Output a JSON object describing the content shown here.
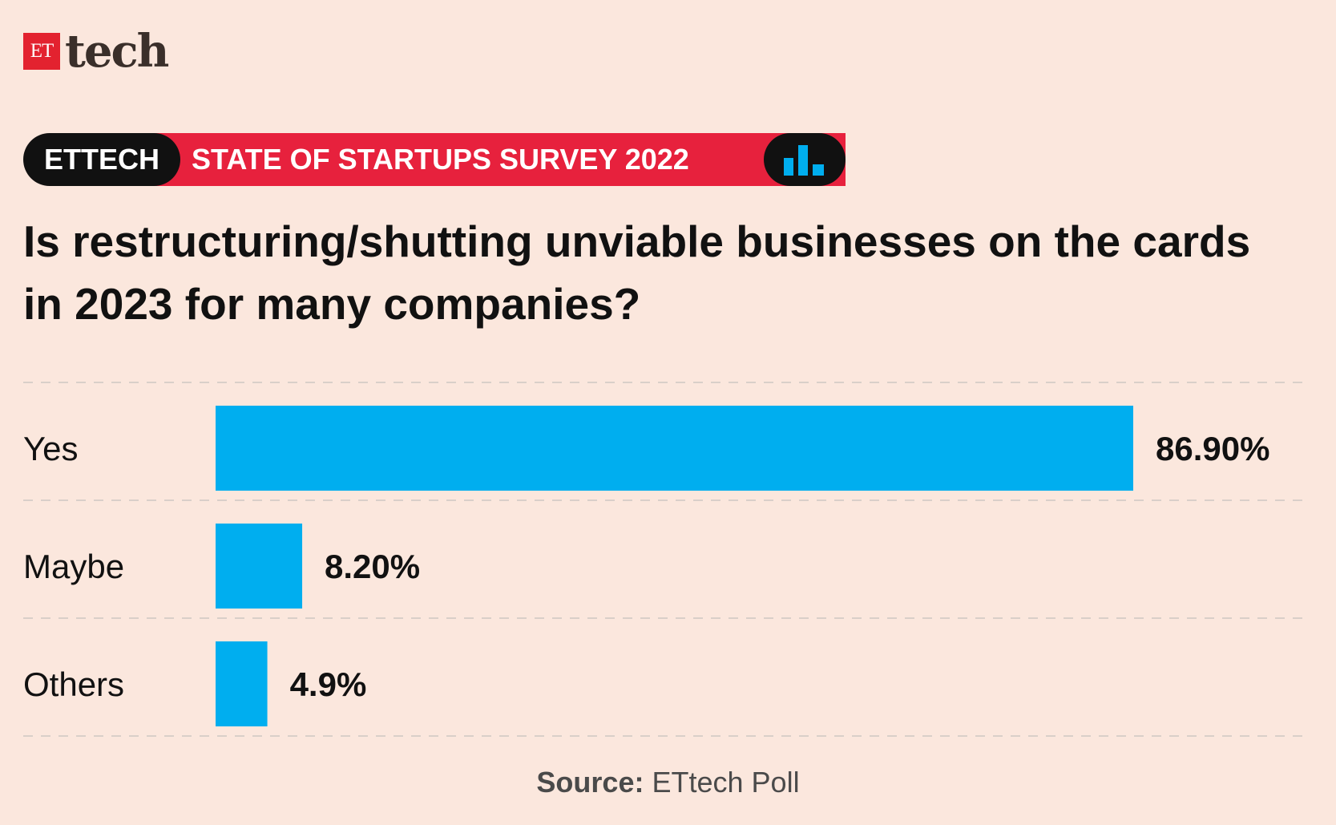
{
  "logo": {
    "et": "ET",
    "tech": "tech"
  },
  "banner": {
    "left": "ETTECH",
    "right": "STATE OF STARTUPS SURVEY 2022",
    "icon": "bar-chart-icon"
  },
  "colors": {
    "background": "#fbe7dd",
    "bar": "#00aeef",
    "red": "#e7213d",
    "black": "#111111"
  },
  "chart_data": {
    "type": "bar",
    "orientation": "horizontal",
    "title": "Is restructuring/shutting unviable businesses on the cards in 2023 for many companies?",
    "categories": [
      "Yes",
      "Maybe",
      "Others"
    ],
    "values": [
      86.9,
      8.2,
      4.9
    ],
    "value_labels": [
      "86.90%",
      "8.20%",
      "4.9%"
    ],
    "xlim": [
      0,
      86.9
    ]
  },
  "source": {
    "label": "Source:",
    "text": "ETtech Poll"
  }
}
